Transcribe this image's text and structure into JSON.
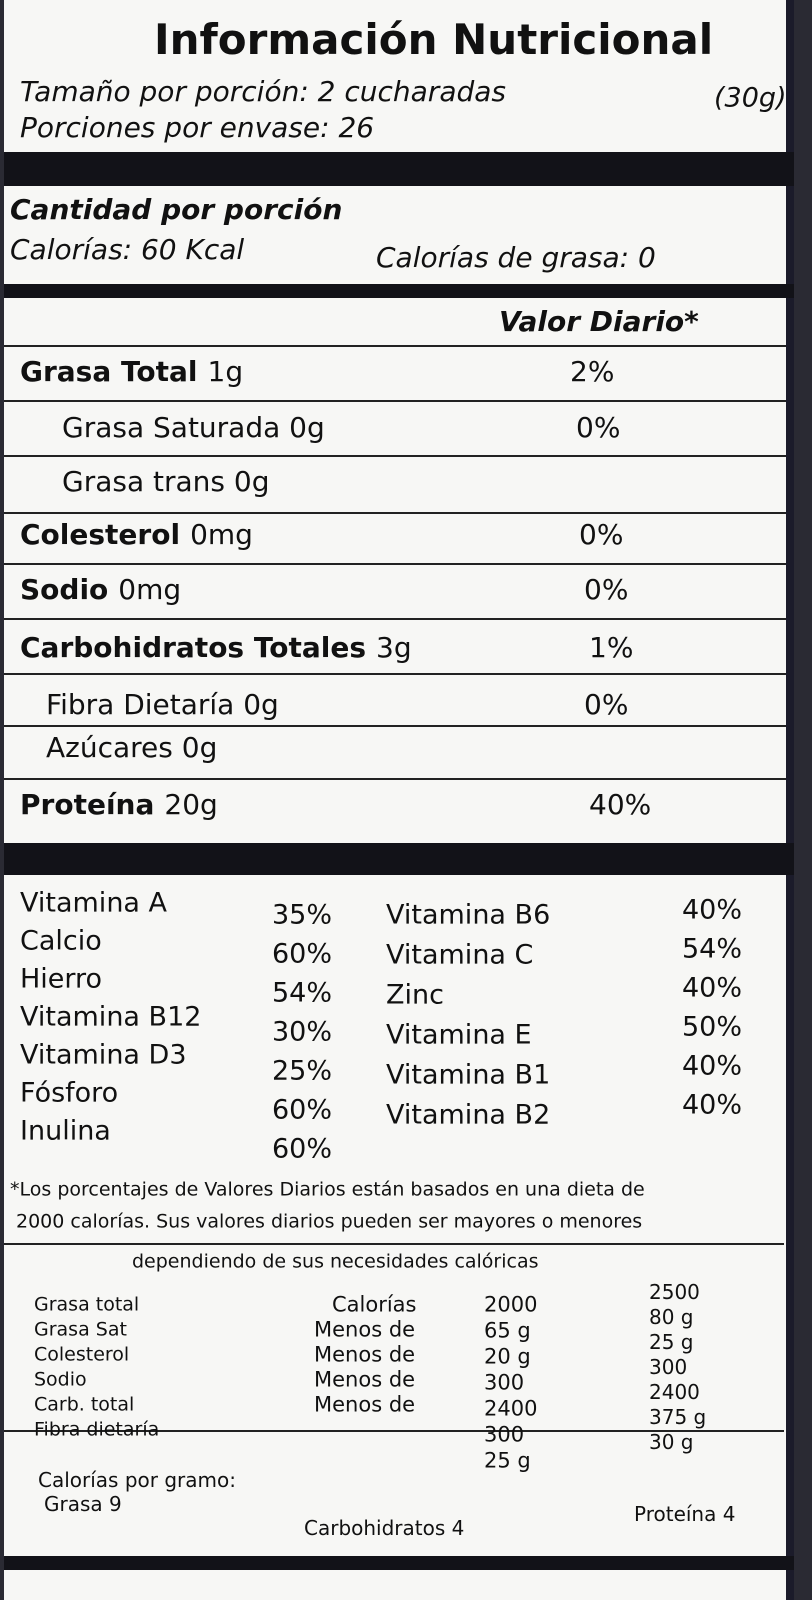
{
  "header": {
    "title": "Información Nutricional",
    "serving_size": "Tamaño por porción: 2 cucharadas",
    "serving_weight": "(30g)",
    "servings_per_container": "Porciones por envase: 26"
  },
  "amount": {
    "heading": "Cantidad por porción",
    "calories": "Calorías: 60 Kcal",
    "fat_calories": "Calorías de grasa: 0"
  },
  "daily_value_heading": "Valor Diario*",
  "nutrients": [
    {
      "name": "Grasa Total",
      "amount": "1g",
      "dv": "2%"
    },
    {
      "name": "Grasa Saturada 0g",
      "dv": "0%"
    },
    {
      "name": "Grasa trans 0g"
    },
    {
      "name": "Colesterol",
      "amount": "0mg",
      "dv": "0%"
    },
    {
      "name": "Sodio",
      "amount": "0mg",
      "dv": "0%"
    },
    {
      "name": "Carbohidratos Totales",
      "amount": "3g",
      "dv": "1%"
    },
    {
      "name": "Fibra Dietaría 0g",
      "dv": "0%"
    },
    {
      "name": "Azúcares 0g"
    },
    {
      "name": "Proteína",
      "amount": "20g",
      "dv": "40%"
    }
  ],
  "vitamins": {
    "left": [
      {
        "name": "Vitamina A",
        "dv": "35%"
      },
      {
        "name": "Calcio",
        "dv": "60%"
      },
      {
        "name": "Hierro",
        "dv": "54%"
      },
      {
        "name": "Vitamina B12",
        "dv": "30%"
      },
      {
        "name": "Vitamina D3",
        "dv": "25%"
      },
      {
        "name": "Fósforo",
        "dv": "60%"
      },
      {
        "name": "Inulina",
        "dv": "60%"
      }
    ],
    "right": [
      {
        "name": "Vitamina B6",
        "dv": "40%"
      },
      {
        "name": "Vitamina C",
        "dv": "54%"
      },
      {
        "name": "Zinc",
        "dv": "40%"
      },
      {
        "name": "Vitamina E",
        "dv": "50%"
      },
      {
        "name": "Vitamina B1",
        "dv": "40%"
      },
      {
        "name": "Vitamina B2",
        "dv": "40%"
      }
    ]
  },
  "footnote": [
    "*Los porcentajes de Valores Diarios están basados en una dieta de",
    "2000 calorías. Sus valores diarios pueden ser mayores o menores",
    "dependiendo de sus necesidades calóricas"
  ],
  "reference": {
    "nutrients": [
      "Grasa total",
      "Grasa Sat",
      "Colesterol",
      "Sodio",
      "Carb. total",
      "Fibra dietaría"
    ],
    "qualifiers": [
      "Calorías",
      "Menos de",
      "Menos de",
      "Menos de",
      "Menos de"
    ],
    "col_2000": [
      "2000",
      "65 g",
      "20 g",
      "300",
      "2400",
      "300",
      "25 g"
    ],
    "col_2500": [
      "2500",
      "80 g",
      "25 g",
      "300",
      "2400",
      "375 g",
      "30 g"
    ]
  },
  "calories_per_gram": {
    "heading": "Calorías por gramo:",
    "fat": "Grasa 9",
    "carbs": "Carbohidratos 4",
    "protein": "Proteína 4"
  }
}
